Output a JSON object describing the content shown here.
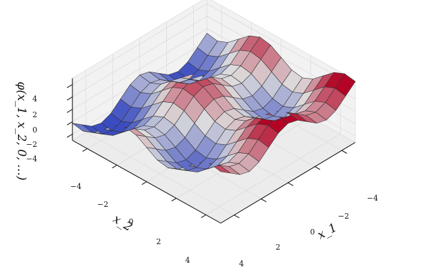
{
  "chart_data": {
    "type": "surface",
    "title": "",
    "xlabel": "x_1",
    "ylabel": "x_2",
    "zlabel": "φ(x_1, x_2, 0, …)",
    "xlim": [
      -5,
      5
    ],
    "ylim": [
      -5,
      5
    ],
    "zlim": [
      -5,
      5
    ],
    "grid": true,
    "colormap": "coolwarm",
    "colors": {
      "low": "#3b4cc0",
      "mid": "#dddddd",
      "high": "#b40426",
      "edge": "#333333",
      "pane": "#f2f2f2",
      "paneGrid": "#dcdcdc"
    },
    "x_ticks": [
      "−4",
      "−2",
      "0",
      "2",
      "4"
    ],
    "y_ticks": [
      "−4",
      "−2",
      "0",
      "2",
      "4"
    ],
    "z_ticks": [
      "4",
      "2",
      "0",
      "−2",
      "−4"
    ],
    "x": [
      -5.0,
      -4.286,
      -3.571,
      -2.857,
      -2.143,
      -1.429,
      -0.714,
      0.0,
      0.714,
      1.429,
      2.143,
      2.857,
      3.571,
      4.286,
      5.0
    ],
    "y": [
      -5.0,
      -4.286,
      -3.571,
      -2.857,
      -2.143,
      -1.429,
      -0.714,
      0.0,
      0.714,
      1.429,
      2.143,
      2.857,
      3.571,
      4.286,
      5.0
    ],
    "surface": "phi = 1.8*(sin(1.1*x1)+cos(1.1*x2)) - 0.3*x1 + 0.15*x2"
  }
}
